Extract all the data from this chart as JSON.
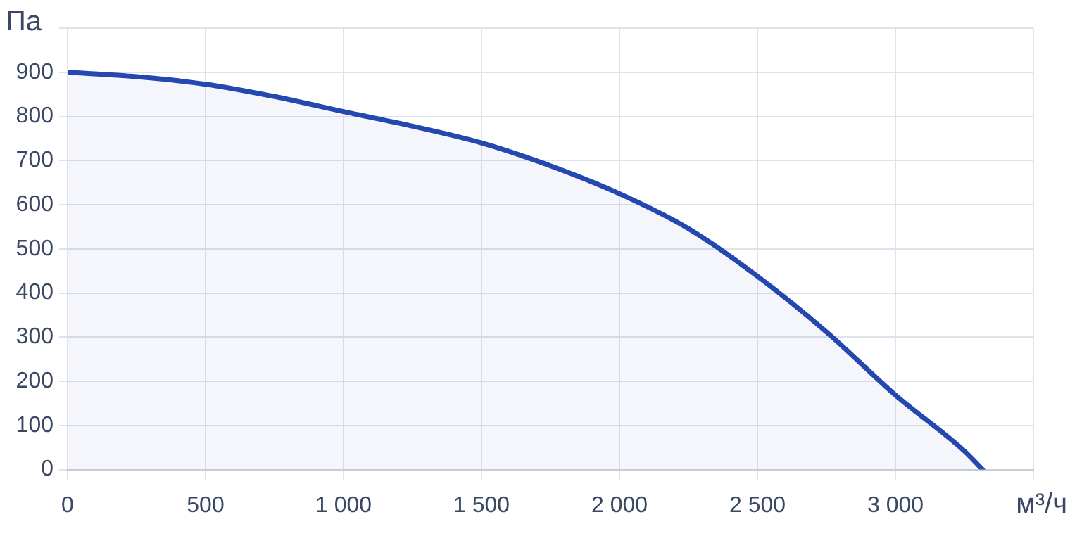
{
  "chart_data": {
    "type": "area",
    "ylabel": "Па",
    "xlabel": "м³/ч",
    "x": [
      0,
      250,
      500,
      750,
      1000,
      1250,
      1500,
      1750,
      2000,
      2250,
      2500,
      2750,
      3000,
      3250,
      3316
    ],
    "series": [
      {
        "color": "#2447b0",
        "values": [
          900,
          890,
          873,
          845,
          811,
          778,
          740,
          688,
          625,
          546,
          438,
          312,
          169,
          42,
          0
        ]
      }
    ],
    "xlim": [
      0,
      3500
    ],
    "xticks": [
      {
        "value": 0,
        "label": "0"
      },
      {
        "value": 500,
        "label": "500"
      },
      {
        "value": 1000,
        "label": "1 000"
      },
      {
        "value": 1500,
        "label": "1 500"
      },
      {
        "value": 2000,
        "label": "2 000"
      },
      {
        "value": 2500,
        "label": "2 500"
      },
      {
        "value": 3000,
        "label": "3 000"
      },
      {
        "value": 3500,
        "label": null
      }
    ],
    "ylim": [
      0,
      1000
    ],
    "yticks": [
      0,
      100,
      200,
      300,
      400,
      500,
      600,
      700,
      800,
      900,
      {
        "value": 1000,
        "label": null
      }
    ],
    "grid": true,
    "legend": false,
    "marker": "none",
    "line_style": "solid"
  }
}
